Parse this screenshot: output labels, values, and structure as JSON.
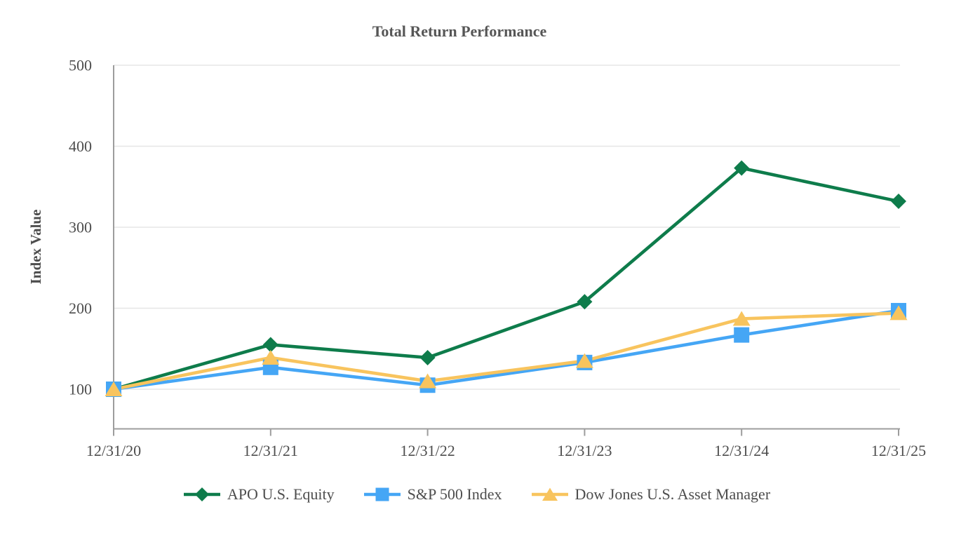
{
  "chart": {
    "title": "Total Return Performance",
    "ylabel": "Index Value"
  },
  "chart_data": {
    "type": "line",
    "title": "Total Return Performance",
    "xlabel": "",
    "ylabel": "Index Value",
    "categories": [
      "12/31/20",
      "12/31/21",
      "12/31/22",
      "12/31/23",
      "12/31/24",
      "12/31/25"
    ],
    "series": [
      {
        "name": "APO U.S. Equity",
        "marker": "diamond",
        "color": "#0e7c4b",
        "values": [
          100,
          155,
          139,
          208,
          373,
          332
        ]
      },
      {
        "name": "S&P 500 Index",
        "marker": "square",
        "color": "#45a6f5",
        "values": [
          100,
          127,
          105,
          133,
          167,
          197
        ]
      },
      {
        "name": "Dow Jones U.S. Asset Manager",
        "marker": "triangle",
        "color": "#f8c45e",
        "values": [
          100,
          139,
          110,
          135,
          187,
          194
        ]
      }
    ],
    "y_ticks": [
      100,
      200,
      300,
      400,
      500
    ],
    "ylim": [
      50,
      500
    ],
    "grid": "horizontal",
    "legend_position": "bottom"
  },
  "styles": {
    "grid_color": "#e6e6e6",
    "axis_color": "#9d9d9d",
    "text_color": "#4d4d4d",
    "title_color": "#565656"
  }
}
